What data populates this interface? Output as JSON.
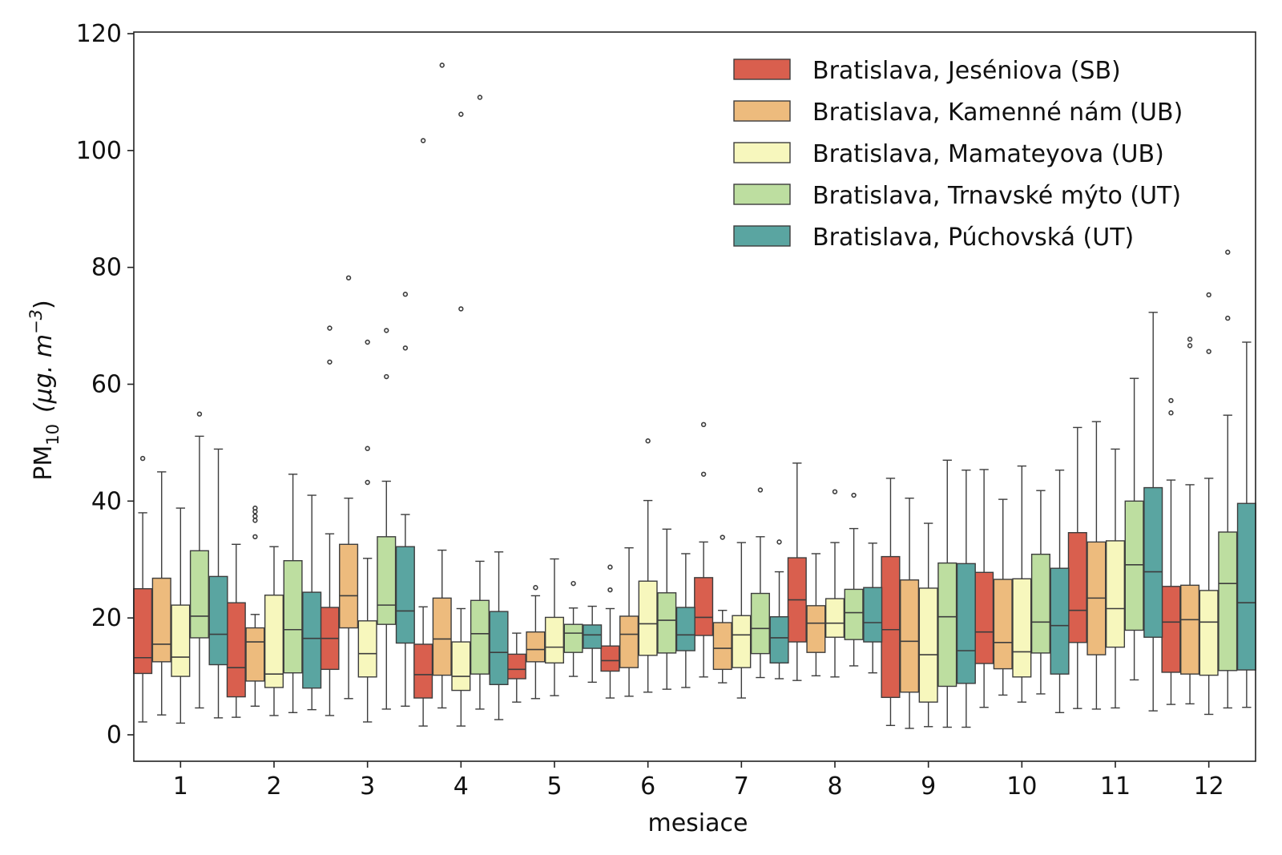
{
  "chart_data": {
    "type": "box",
    "xlabel": "mesiace",
    "ylabel_main": "PM",
    "ylabel_sub": "10",
    "ylabel_unit": "(μg. m",
    "ylabel_exp": "−3",
    "ylabel_close": ")",
    "ylim": [
      -5,
      120
    ],
    "yticks": [
      0,
      20,
      40,
      60,
      80,
      100,
      120
    ],
    "categories": [
      "1",
      "2",
      "3",
      "4",
      "5",
      "6",
      "7",
      "8",
      "9",
      "10",
      "11",
      "12"
    ],
    "legend_position": "top-right",
    "series": [
      {
        "name": "Bratislava, Jeséniova (SB)",
        "color": "#d95f4e",
        "boxes": [
          {
            "wlo": 2.2,
            "q1": 10.5,
            "med": 13.2,
            "q3": 25.0,
            "whi": 38.0,
            "fliers": [
              47.3
            ]
          },
          {
            "wlo": 3.0,
            "q1": 6.5,
            "med": 11.5,
            "q3": 22.6,
            "whi": 32.6,
            "fliers": []
          },
          {
            "wlo": 3.3,
            "q1": 11.2,
            "med": 16.5,
            "q3": 21.8,
            "whi": 34.4,
            "fliers": [
              63.8,
              69.6
            ]
          },
          {
            "wlo": 1.5,
            "q1": 6.3,
            "med": 10.3,
            "q3": 15.5,
            "whi": 21.9,
            "fliers": [
              101.7
            ]
          },
          {
            "wlo": 5.6,
            "q1": 9.6,
            "med": 11.2,
            "q3": 13.8,
            "whi": 17.4,
            "fliers": []
          },
          {
            "wlo": 6.3,
            "q1": 10.9,
            "med": 12.7,
            "q3": 15.2,
            "whi": 21.6,
            "fliers": [
              24.8,
              28.7
            ]
          },
          {
            "wlo": 9.9,
            "q1": 17.0,
            "med": 20.1,
            "q3": 26.9,
            "whi": 33.0,
            "fliers": [
              44.6,
              53.1
            ]
          },
          {
            "wlo": 9.3,
            "q1": 15.9,
            "med": 23.1,
            "q3": 30.3,
            "whi": 46.5,
            "fliers": []
          },
          {
            "wlo": 1.6,
            "q1": 6.4,
            "med": 18.0,
            "q3": 30.5,
            "whi": 43.9,
            "fliers": []
          },
          {
            "wlo": 4.7,
            "q1": 12.2,
            "med": 17.6,
            "q3": 27.8,
            "whi": 45.4,
            "fliers": []
          },
          {
            "wlo": 4.5,
            "q1": 15.8,
            "med": 21.3,
            "q3": 34.6,
            "whi": 52.6,
            "fliers": []
          },
          {
            "wlo": 5.2,
            "q1": 10.7,
            "med": 19.3,
            "q3": 25.4,
            "whi": 43.6,
            "fliers": [
              55.1,
              57.2
            ]
          }
        ]
      },
      {
        "name": "Bratislava, Kamenné nám (UB)",
        "color": "#edbb7d",
        "boxes": [
          {
            "wlo": 3.4,
            "q1": 12.5,
            "med": 15.5,
            "q3": 26.8,
            "whi": 45.0,
            "fliers": []
          },
          {
            "wlo": 4.9,
            "q1": 9.2,
            "med": 15.9,
            "q3": 18.3,
            "whi": 20.6,
            "fliers": [
              33.9,
              36.7,
              37.4,
              38.2,
              38.8
            ]
          },
          {
            "wlo": 6.2,
            "q1": 18.3,
            "med": 23.8,
            "q3": 32.6,
            "whi": 40.5,
            "fliers": [
              78.2
            ]
          },
          {
            "wlo": 4.6,
            "q1": 10.2,
            "med": 16.4,
            "q3": 23.4,
            "whi": 31.6,
            "fliers": [
              114.6
            ]
          },
          {
            "wlo": 6.2,
            "q1": 12.5,
            "med": 14.6,
            "q3": 17.6,
            "whi": 23.8,
            "fliers": [
              25.2
            ]
          },
          {
            "wlo": 6.6,
            "q1": 11.5,
            "med": 17.2,
            "q3": 20.3,
            "whi": 32.0,
            "fliers": []
          },
          {
            "wlo": 8.9,
            "q1": 11.2,
            "med": 14.8,
            "q3": 19.2,
            "whi": 21.3,
            "fliers": [
              33.8
            ]
          },
          {
            "wlo": 10.1,
            "q1": 14.1,
            "med": 19.1,
            "q3": 22.1,
            "whi": 31.0,
            "fliers": []
          },
          {
            "wlo": 1.1,
            "q1": 7.3,
            "med": 16.0,
            "q3": 26.5,
            "whi": 40.5,
            "fliers": []
          },
          {
            "wlo": 6.8,
            "q1": 11.3,
            "med": 15.8,
            "q3": 26.6,
            "whi": 40.3,
            "fliers": []
          },
          {
            "wlo": 4.4,
            "q1": 13.7,
            "med": 23.4,
            "q3": 33.0,
            "whi": 53.6,
            "fliers": []
          },
          {
            "wlo": 5.3,
            "q1": 10.4,
            "med": 19.7,
            "q3": 25.6,
            "whi": 42.8,
            "fliers": [
              66.6,
              67.7
            ]
          }
        ]
      },
      {
        "name": "Bratislava, Mamateyova (UB)",
        "color": "#f7f7bd",
        "boxes": [
          {
            "wlo": 2.0,
            "q1": 10.0,
            "med": 13.3,
            "q3": 22.2,
            "whi": 38.8,
            "fliers": []
          },
          {
            "wlo": 3.3,
            "q1": 8.1,
            "med": 10.4,
            "q3": 23.9,
            "whi": 32.2,
            "fliers": []
          },
          {
            "wlo": 2.2,
            "q1": 9.9,
            "med": 13.9,
            "q3": 19.5,
            "whi": 30.2,
            "fliers": [
              43.2,
              49.0,
              67.2
            ]
          },
          {
            "wlo": 1.5,
            "q1": 7.6,
            "med": 10.0,
            "q3": 15.9,
            "whi": 21.6,
            "fliers": [
              72.9,
              106.2
            ]
          },
          {
            "wlo": 6.7,
            "q1": 12.3,
            "med": 15.0,
            "q3": 20.1,
            "whi": 30.1,
            "fliers": []
          },
          {
            "wlo": 7.3,
            "q1": 13.6,
            "med": 19.0,
            "q3": 26.3,
            "whi": 40.1,
            "fliers": [
              50.3
            ]
          },
          {
            "wlo": 6.3,
            "q1": 11.5,
            "med": 17.1,
            "q3": 20.4,
            "whi": 32.9,
            "fliers": []
          },
          {
            "wlo": 9.9,
            "q1": 16.7,
            "med": 19.1,
            "q3": 23.3,
            "whi": 32.9,
            "fliers": [
              41.6
            ]
          },
          {
            "wlo": 1.4,
            "q1": 5.6,
            "med": 13.7,
            "q3": 25.1,
            "whi": 36.2,
            "fliers": []
          },
          {
            "wlo": 5.6,
            "q1": 9.9,
            "med": 14.2,
            "q3": 26.7,
            "whi": 46.0,
            "fliers": []
          },
          {
            "wlo": 4.6,
            "q1": 15.0,
            "med": 21.6,
            "q3": 33.2,
            "whi": 48.9,
            "fliers": []
          },
          {
            "wlo": 3.5,
            "q1": 10.2,
            "med": 19.3,
            "q3": 24.7,
            "whi": 43.9,
            "fliers": [
              65.6,
              75.3
            ]
          }
        ]
      },
      {
        "name": "Bratislava, Trnavské mýto (UT)",
        "color": "#bddea0",
        "boxes": [
          {
            "wlo": 4.6,
            "q1": 16.6,
            "med": 20.3,
            "q3": 31.5,
            "whi": 51.1,
            "fliers": [
              54.9
            ]
          },
          {
            "wlo": 3.8,
            "q1": 10.6,
            "med": 18.0,
            "q3": 29.8,
            "whi": 44.6,
            "fliers": []
          },
          {
            "wlo": 4.4,
            "q1": 18.9,
            "med": 22.2,
            "q3": 33.9,
            "whi": 43.4,
            "fliers": [
              61.3,
              69.2
            ]
          },
          {
            "wlo": 4.4,
            "q1": 10.4,
            "med": 17.3,
            "q3": 23.0,
            "whi": 29.7,
            "fliers": [
              109.1
            ]
          },
          {
            "wlo": 10.0,
            "q1": 14.1,
            "med": 17.4,
            "q3": 18.9,
            "whi": 21.7,
            "fliers": [
              25.9
            ]
          },
          {
            "wlo": 7.8,
            "q1": 14.0,
            "med": 19.6,
            "q3": 24.3,
            "whi": 35.2,
            "fliers": []
          },
          {
            "wlo": 9.8,
            "q1": 13.9,
            "med": 18.2,
            "q3": 24.2,
            "whi": 33.9,
            "fliers": [
              41.9
            ]
          },
          {
            "wlo": 11.8,
            "q1": 16.3,
            "med": 20.9,
            "q3": 24.9,
            "whi": 35.3,
            "fliers": [
              41.0
            ]
          },
          {
            "wlo": 1.3,
            "q1": 8.3,
            "med": 20.2,
            "q3": 29.4,
            "whi": 47.0,
            "fliers": []
          },
          {
            "wlo": 7.0,
            "q1": 14.0,
            "med": 19.3,
            "q3": 30.9,
            "whi": 41.8,
            "fliers": []
          },
          {
            "wlo": 9.4,
            "q1": 17.9,
            "med": 29.1,
            "q3": 40.0,
            "whi": 61.0,
            "fliers": []
          },
          {
            "wlo": 4.6,
            "q1": 11.0,
            "med": 25.9,
            "q3": 34.7,
            "whi": 54.7,
            "fliers": [
              71.3,
              82.6
            ]
          }
        ]
      },
      {
        "name": "Bratislava, Púchovská (UT)",
        "color": "#5aa5a1",
        "boxes": [
          {
            "wlo": 2.9,
            "q1": 12.0,
            "med": 17.2,
            "q3": 27.1,
            "whi": 48.9,
            "fliers": []
          },
          {
            "wlo": 4.3,
            "q1": 8.0,
            "med": 16.5,
            "q3": 24.4,
            "whi": 41.0,
            "fliers": []
          },
          {
            "wlo": 4.9,
            "q1": 15.7,
            "med": 21.2,
            "q3": 32.2,
            "whi": 37.7,
            "fliers": [
              66.2,
              75.4
            ]
          },
          {
            "wlo": 2.6,
            "q1": 8.6,
            "med": 14.1,
            "q3": 21.1,
            "whi": 31.3,
            "fliers": []
          },
          {
            "wlo": 9.0,
            "q1": 14.8,
            "med": 17.1,
            "q3": 18.8,
            "whi": 22.0,
            "fliers": []
          },
          {
            "wlo": 8.1,
            "q1": 14.4,
            "med": 17.1,
            "q3": 21.8,
            "whi": 31.0,
            "fliers": []
          },
          {
            "wlo": 9.6,
            "q1": 12.3,
            "med": 16.6,
            "q3": 20.2,
            "whi": 27.9,
            "fliers": [
              33.0
            ]
          },
          {
            "wlo": 10.6,
            "q1": 15.9,
            "med": 19.2,
            "q3": 25.2,
            "whi": 32.8,
            "fliers": []
          },
          {
            "wlo": 1.3,
            "q1": 8.8,
            "med": 14.4,
            "q3": 29.3,
            "whi": 45.3,
            "fliers": []
          },
          {
            "wlo": 3.8,
            "q1": 10.4,
            "med": 18.7,
            "q3": 28.5,
            "whi": 45.3,
            "fliers": []
          },
          {
            "wlo": 4.1,
            "q1": 16.7,
            "med": 27.9,
            "q3": 42.3,
            "whi": 72.3,
            "fliers": []
          },
          {
            "wlo": 4.7,
            "q1": 11.1,
            "med": 22.6,
            "q3": 39.6,
            "whi": 67.2,
            "fliers": []
          }
        ]
      }
    ]
  }
}
